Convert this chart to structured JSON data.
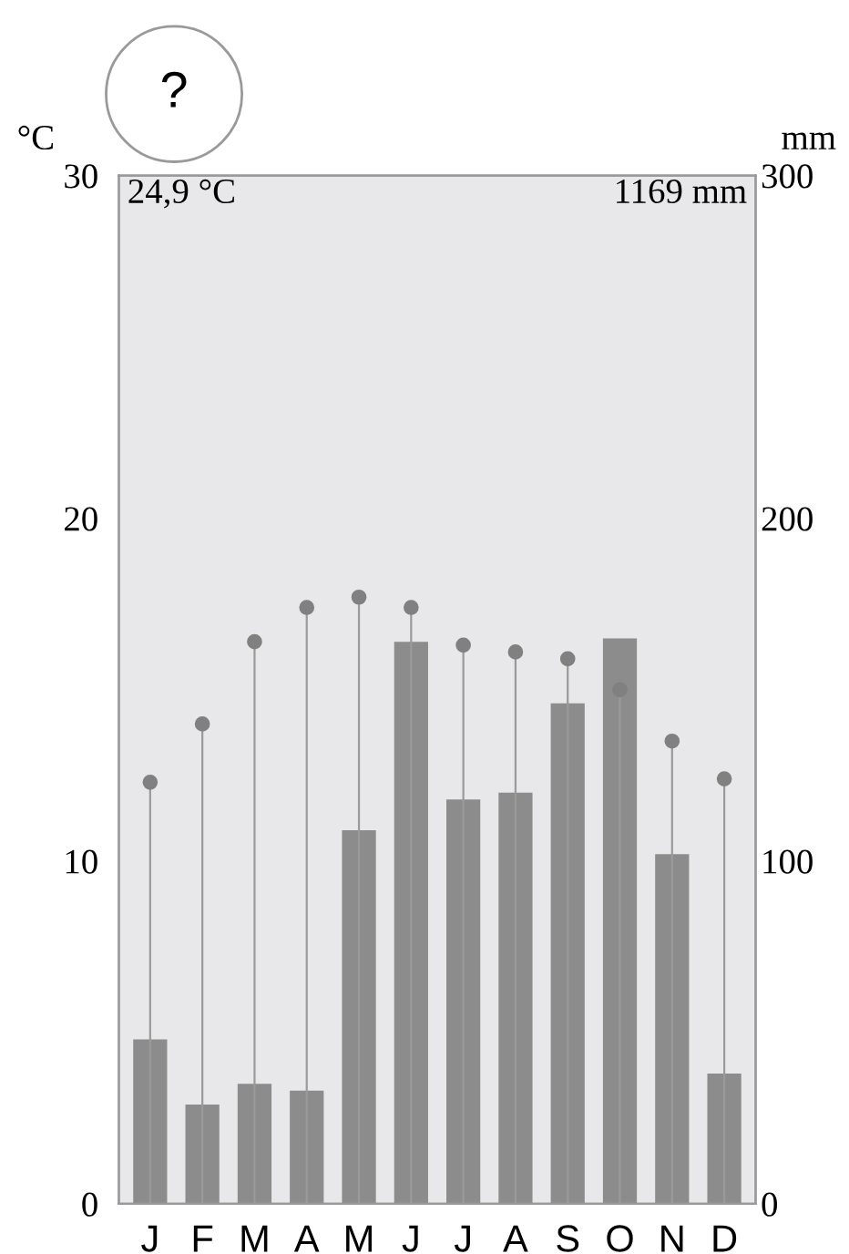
{
  "chart_data": {
    "type": "bar",
    "categories": [
      "J",
      "F",
      "M",
      "A",
      "M",
      "J",
      "J",
      "A",
      "S",
      "O",
      "N",
      "D"
    ],
    "ylabel": "°C",
    "y2label": "mm",
    "ylim": [
      0,
      30
    ],
    "yticks": [
      0,
      10,
      20,
      30
    ],
    "y2lim": [
      0,
      300
    ],
    "y2ticks": [
      0,
      100,
      200,
      300
    ],
    "series": [
      {
        "axis": "y2",
        "color": "#8c8c8c",
        "values": [
          48,
          29,
          35,
          33,
          109,
          164,
          118,
          120,
          146,
          165,
          102,
          38
        ]
      },
      {
        "type": "lollipop",
        "axis": "y",
        "color": "#808080",
        "values": [
          12.3,
          14.0,
          16.4,
          17.4,
          17.7,
          17.4,
          16.3,
          16.1,
          15.9,
          15.0,
          13.5,
          12.4
        ]
      }
    ],
    "annotations": [
      "?",
      "24,9 °C",
      "1169 mm"
    ],
    "grid": false,
    "marker": "circle"
  }
}
